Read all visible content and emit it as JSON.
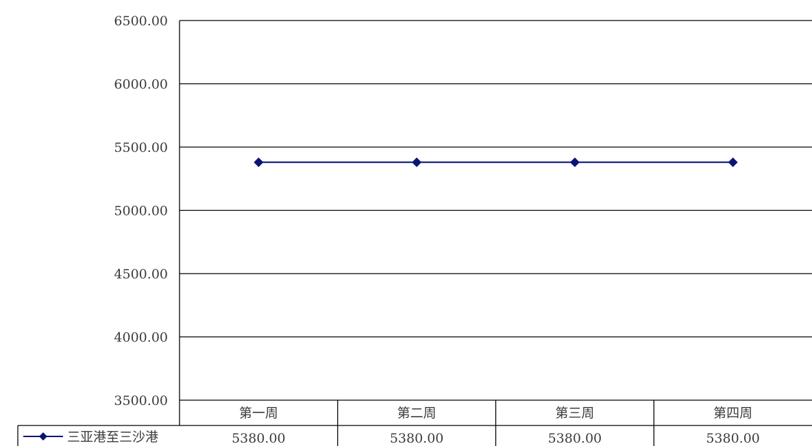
{
  "chart_data": {
    "type": "line",
    "categories": [
      "第一周",
      "第二周",
      "第三周",
      "第四周"
    ],
    "series": [
      {
        "name": "三亚港至三沙港",
        "values": [
          5380.0,
          5380.0,
          5380.0,
          5380.0
        ],
        "value_labels": [
          "5380.00",
          "5380.00",
          "5380.00",
          "5380.00"
        ]
      }
    ],
    "y_ticks": [
      "3500.00",
      "4000.00",
      "4500.00",
      "5000.00",
      "5500.00",
      "6000.00",
      "6500.00"
    ],
    "ylim": [
      3500,
      6500
    ],
    "grid": true,
    "legend": "data-table-left",
    "colors": {
      "series": "#0a1475",
      "grid": "#000000",
      "text": "#3a3a3a"
    }
  }
}
